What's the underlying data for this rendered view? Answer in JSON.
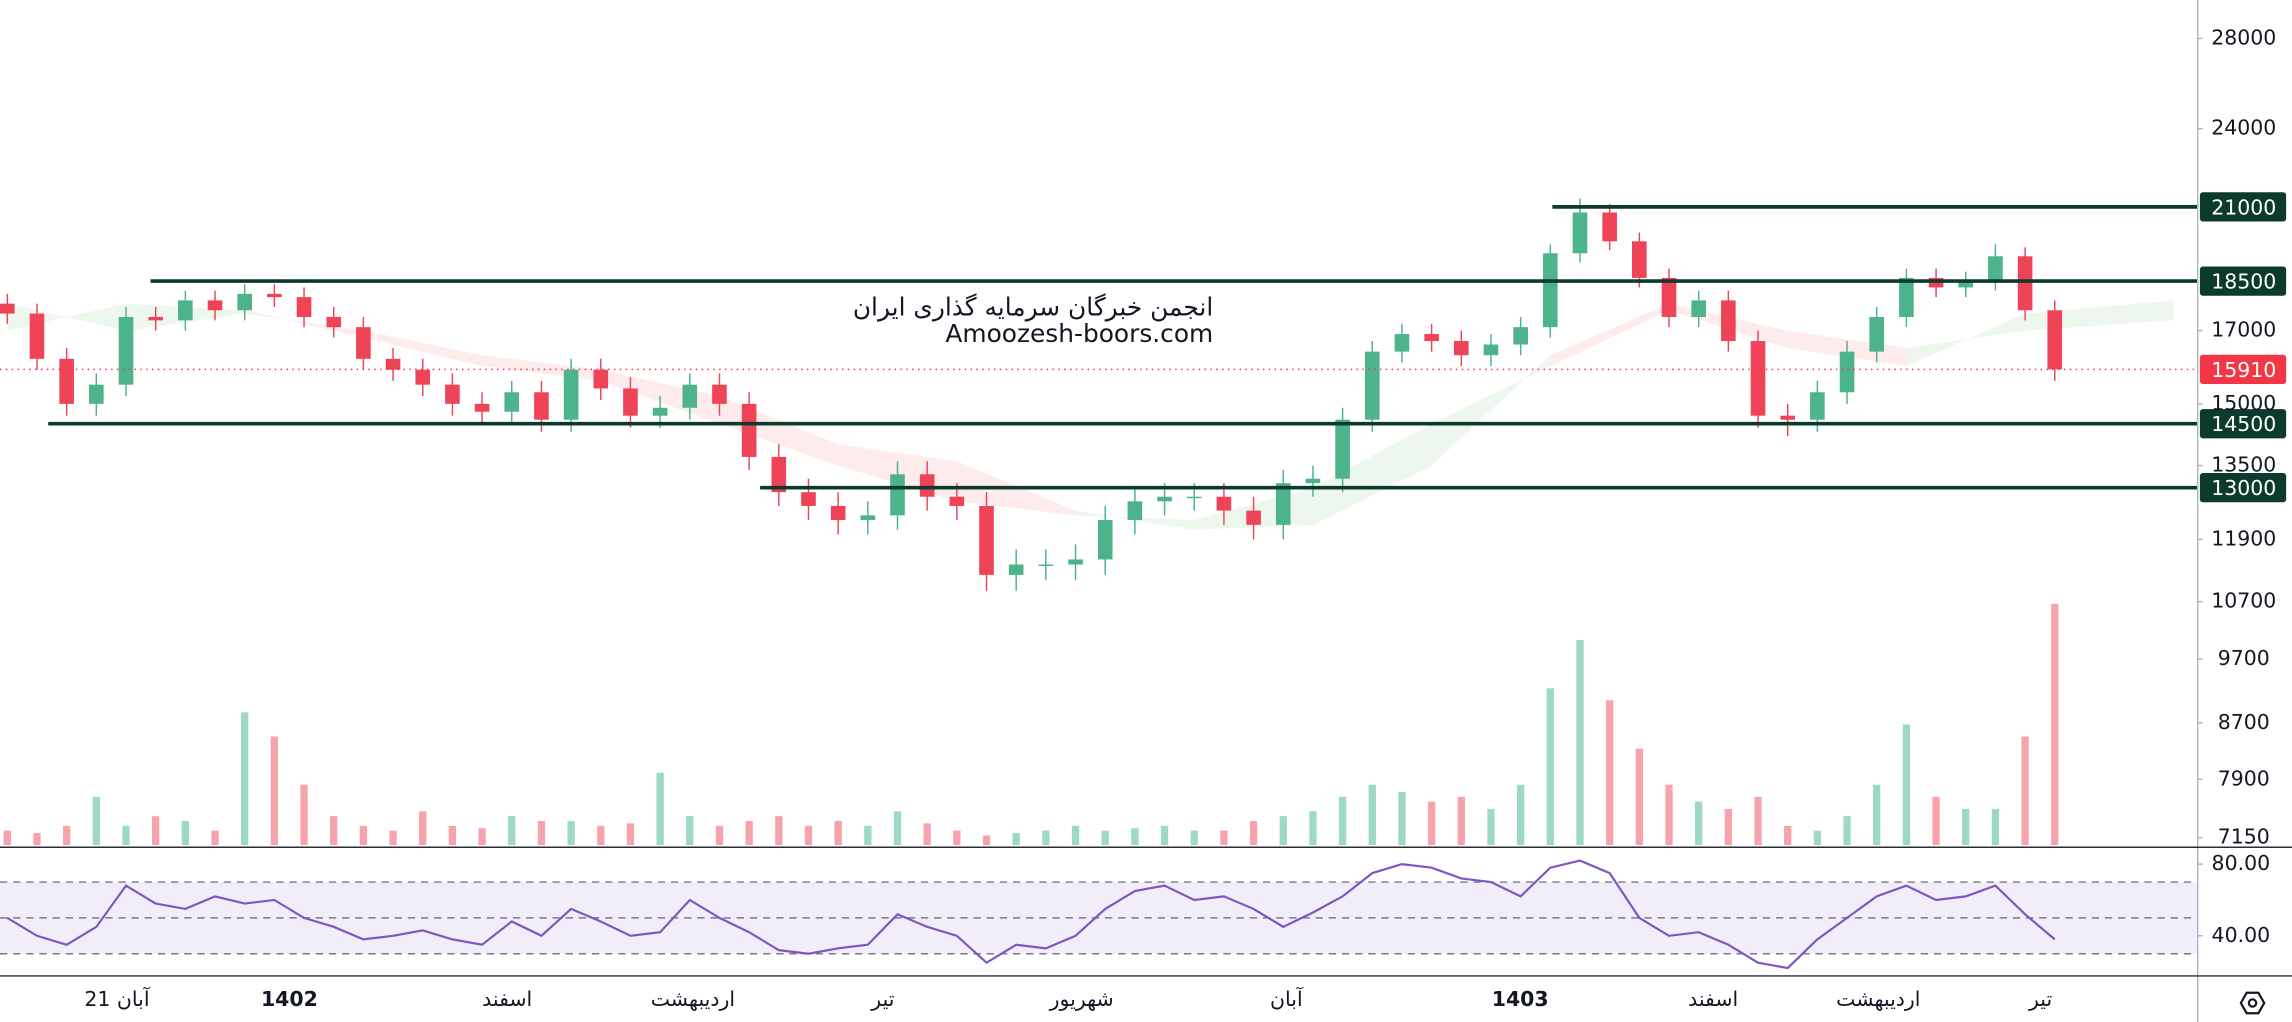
{
  "chart_data": {
    "type": "candlestick",
    "title": "انجمن خبرگان سرمایه گذاری ایران",
    "subtitle": "Amoozesh-boors.com",
    "categories": [
      "21 آبان",
      "1402",
      "اسفند",
      "اردیبهشت",
      "تیر",
      "شهریور",
      "آبان",
      "1403",
      "اسفند",
      "اردیبهشت",
      "تیر"
    ],
    "log_scale": true,
    "ylim": [
      7060,
      29900
    ],
    "yticks": [
      28000,
      24000,
      17000,
      15000,
      13500,
      11900,
      10700,
      9700,
      8700,
      7900,
      7150
    ],
    "up_color": "#4cb38a",
    "down_color": "#ef4457",
    "open": [
      17800,
      17500,
      16200,
      15000,
      15500,
      17400,
      17300,
      17900,
      17600,
      18100,
      18000,
      17400,
      17100,
      16200,
      15900,
      15500,
      15000,
      14800,
      15300,
      14600,
      15900,
      15400,
      14700,
      14900,
      15500,
      15000,
      13700,
      12900,
      12600,
      12300,
      12400,
      13300,
      12800,
      12600,
      11200,
      11400,
      11400,
      11500,
      12300,
      12700,
      12800,
      12800,
      12500,
      12200,
      13100,
      13200,
      14600,
      16400,
      16900,
      16700,
      16300,
      16600,
      17100,
      19400,
      20800,
      19800,
      18600,
      17400,
      17900,
      16700,
      14700,
      14600,
      15300,
      16400,
      17400,
      18600,
      18300,
      18500,
      19300,
      17600
    ],
    "high": [
      18100,
      17800,
      16500,
      15800,
      17700,
      17700,
      18200,
      18200,
      18400,
      18400,
      18300,
      17700,
      17400,
      16500,
      16200,
      15800,
      15300,
      15600,
      15600,
      16200,
      16200,
      15700,
      15200,
      15800,
      15800,
      15300,
      14000,
      13200,
      12900,
      12700,
      13600,
      13600,
      13100,
      12900,
      11700,
      11700,
      11800,
      12600,
      13000,
      13100,
      13100,
      13100,
      12800,
      13400,
      13500,
      14900,
      16700,
      17200,
      17200,
      17000,
      16900,
      17400,
      19700,
      21300,
      21100,
      20100,
      18900,
      18200,
      18200,
      17000,
      15000,
      15600,
      16700,
      17700,
      18900,
      18900,
      18800,
      19700,
      19600,
      17900
    ],
    "low": [
      17200,
      15900,
      14700,
      14700,
      15200,
      17000,
      17000,
      17300,
      17300,
      17700,
      17100,
      16800,
      15900,
      15600,
      15200,
      14700,
      14500,
      14500,
      14300,
      14300,
      15100,
      14400,
      14400,
      14600,
      14700,
      13400,
      12600,
      12300,
      12000,
      12000,
      12100,
      12500,
      12300,
      10900,
      10900,
      11100,
      11100,
      11200,
      12000,
      12400,
      12500,
      12200,
      11900,
      11900,
      12800,
      12900,
      14300,
      16100,
      16400,
      16000,
      16000,
      16300,
      16800,
      19100,
      19500,
      18300,
      17100,
      17100,
      16400,
      14400,
      14200,
      14300,
      15000,
      16100,
      17100,
      18000,
      18000,
      18200,
      17300,
      15600
    ],
    "close": [
      17500,
      16200,
      15000,
      15500,
      17400,
      17300,
      17900,
      17600,
      18100,
      18000,
      17400,
      17100,
      16200,
      15900,
      15500,
      15000,
      14800,
      15300,
      14600,
      15900,
      15400,
      14700,
      14900,
      15500,
      15000,
      13700,
      12900,
      12600,
      12300,
      12400,
      13300,
      12800,
      12600,
      11200,
      11400,
      11400,
      11500,
      12300,
      12700,
      12800,
      12800,
      12500,
      12200,
      13100,
      13200,
      14600,
      16400,
      16900,
      16700,
      16300,
      16600,
      17100,
      19400,
      20800,
      19800,
      18600,
      17400,
      17900,
      16700,
      14700,
      14600,
      15300,
      16400,
      17400,
      18600,
      18300,
      18500,
      19300,
      17600,
      15910
    ],
    "levels": [
      21000,
      18500,
      14500,
      13000
    ],
    "level_color": "#0c3b2e",
    "last_price": 15910,
    "last_price_color": "#f23645",
    "cloud": {
      "x": [
        0,
        4,
        8,
        12,
        16,
        20,
        24,
        28,
        32,
        36,
        40,
        44,
        48,
        52,
        56,
        60,
        64,
        68,
        73
      ],
      "span_a": [
        17000,
        17800,
        17600,
        16800,
        16000,
        15600,
        14500,
        13500,
        12700,
        12400,
        12300,
        13000,
        14500,
        16000,
        17600,
        16500,
        16000,
        17500,
        17900
      ],
      "span_b": [
        17800,
        17000,
        17500,
        17000,
        16300,
        15900,
        15200,
        14000,
        13600,
        12500,
        12100,
        12200,
        13500,
        16300,
        17800,
        17000,
        16500,
        17000,
        17300
      ],
      "up_color": "#4caf50",
      "down_color": "#f23645"
    },
    "volume": {
      "ylim": [
        0,
        100
      ],
      "up_color": "#9ed8c6",
      "down_color": "#f7a3ac",
      "values": [
        6,
        5,
        8,
        20,
        8,
        12,
        10,
        6,
        55,
        45,
        25,
        12,
        8,
        6,
        14,
        8,
        7,
        12,
        10,
        10,
        8,
        9,
        30,
        12,
        8,
        10,
        12,
        8,
        10,
        8,
        14,
        9,
        6,
        4,
        5,
        6,
        8,
        6,
        7,
        8,
        6,
        6,
        10,
        12,
        14,
        20,
        25,
        22,
        18,
        20,
        15,
        25,
        65,
        85,
        60,
        40,
        25,
        18,
        15,
        20,
        8,
        6,
        12,
        25,
        50,
        20,
        15,
        15,
        45,
        100
      ]
    },
    "rsi": {
      "color": "#7e57c2",
      "ylim": [
        18,
        89
      ],
      "yticks": [
        {
          "value": 80,
          "label": "80.00"
        },
        {
          "value": 40,
          "label": "40.00"
        }
      ],
      "bands": [
        70,
        50,
        30
      ],
      "values": [
        50,
        40,
        35,
        45,
        68,
        58,
        55,
        62,
        58,
        60,
        50,
        45,
        38,
        40,
        43,
        38,
        35,
        48,
        40,
        55,
        48,
        40,
        42,
        60,
        50,
        42,
        32,
        30,
        33,
        35,
        52,
        45,
        40,
        25,
        35,
        33,
        40,
        55,
        65,
        68,
        60,
        62,
        55,
        45,
        53,
        62,
        75,
        80,
        78,
        72,
        70,
        62,
        78,
        82,
        75,
        50,
        40,
        42,
        35,
        25,
        22,
        38,
        50,
        62,
        68,
        60,
        62,
        68,
        52,
        38
      ]
    }
  }
}
